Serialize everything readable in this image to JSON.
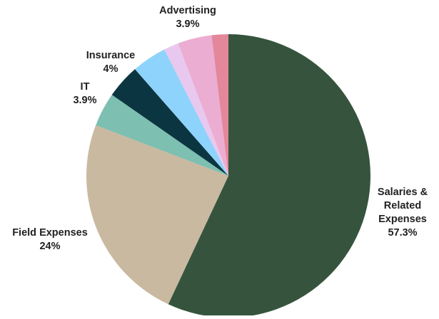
{
  "chart_data": {
    "type": "pie",
    "start_angle_deg": 0,
    "direction": "clockwise",
    "slices": [
      {
        "label": "Salaries &\nRelated\nExpenses",
        "value": 57.3,
        "value_label": "57.3%",
        "color": "#36543d",
        "labeled": true
      },
      {
        "label": "Field Expenses",
        "value": 24,
        "value_label": "24%",
        "color": "#c8b9a0",
        "labeled": true
      },
      {
        "label": "",
        "value": 3.9,
        "value_label": "",
        "color": "#7dbfb1",
        "labeled": false
      },
      {
        "label": "IT",
        "value": 3.9,
        "value_label": "3.9%",
        "color": "#0b3540",
        "labeled": true
      },
      {
        "label": "Insurance",
        "value": 4,
        "value_label": "4%",
        "color": "#8ed3fb",
        "labeled": true
      },
      {
        "label": "",
        "value": 1.7,
        "value_label": "",
        "color": "#e8c8ee",
        "labeled": false
      },
      {
        "label": "Advertising",
        "value": 3.9,
        "value_label": "3.9%",
        "color": "#ebadd1",
        "labeled": true
      },
      {
        "label": "",
        "value": 1.9,
        "value_label": "",
        "color": "#e3879b",
        "labeled": false
      }
    ]
  }
}
